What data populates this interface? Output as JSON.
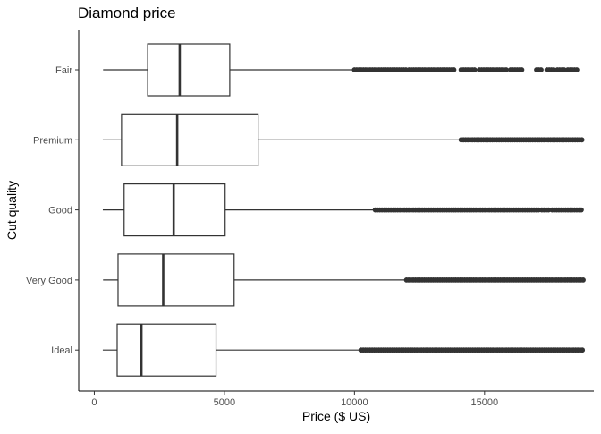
{
  "chart_data": {
    "type": "boxplot",
    "orientation": "horizontal",
    "title": "Diamond price",
    "xlabel": "Price ($ US)",
    "ylabel": "Cut quality",
    "xlim": [
      -600,
      19200
    ],
    "xticks": [
      0,
      5000,
      10000,
      15000
    ],
    "xtick_labels": [
      "0",
      "5000",
      "10000",
      "15000"
    ],
    "categories": [
      "Fair",
      "Premium",
      "Good",
      "Very Good",
      "Ideal"
    ],
    "boxes": [
      {
        "category": "Fair",
        "whisker_low": 337,
        "q1": 2050,
        "median": 3282,
        "q3": 5206,
        "whisker_high": 9950,
        "outliers": [
          [
            10000,
            12000
          ],
          [
            12100,
            13900
          ],
          [
            14100,
            14700
          ],
          [
            14800,
            15900
          ],
          [
            16000,
            16500
          ],
          [
            17000,
            17200
          ],
          [
            17400,
            17700
          ],
          [
            17800,
            18100
          ],
          [
            18200,
            18574
          ]
        ]
      },
      {
        "category": "Premium",
        "whisker_low": 326,
        "q1": 1046,
        "median": 3185,
        "q3": 6296,
        "whisker_high": 14100,
        "outliers": [
          [
            14100,
            18823
          ]
        ]
      },
      {
        "category": "Good",
        "whisker_low": 327,
        "q1": 1145,
        "median": 3050,
        "q3": 5028,
        "whisker_high": 10800,
        "outliers": [
          [
            10800,
            17100
          ],
          [
            17200,
            17500
          ],
          [
            17600,
            18788
          ]
        ]
      },
      {
        "category": "Very Good",
        "whisker_low": 336,
        "q1": 912,
        "median": 2648,
        "q3": 5373,
        "whisker_high": 12000,
        "outliers": [
          [
            12000,
            18818
          ]
        ]
      },
      {
        "category": "Ideal",
        "whisker_low": 326,
        "q1": 878,
        "median": 1810,
        "q3": 4678,
        "whisker_high": 10250,
        "outliers": [
          [
            10250,
            18806
          ]
        ]
      }
    ],
    "grid": false,
    "legend": "none",
    "colors": {
      "box_stroke": "#333333",
      "outlier": "#333333",
      "axis": "#000000",
      "tick_label": "#4d4d4d",
      "background": "#ffffff"
    }
  }
}
